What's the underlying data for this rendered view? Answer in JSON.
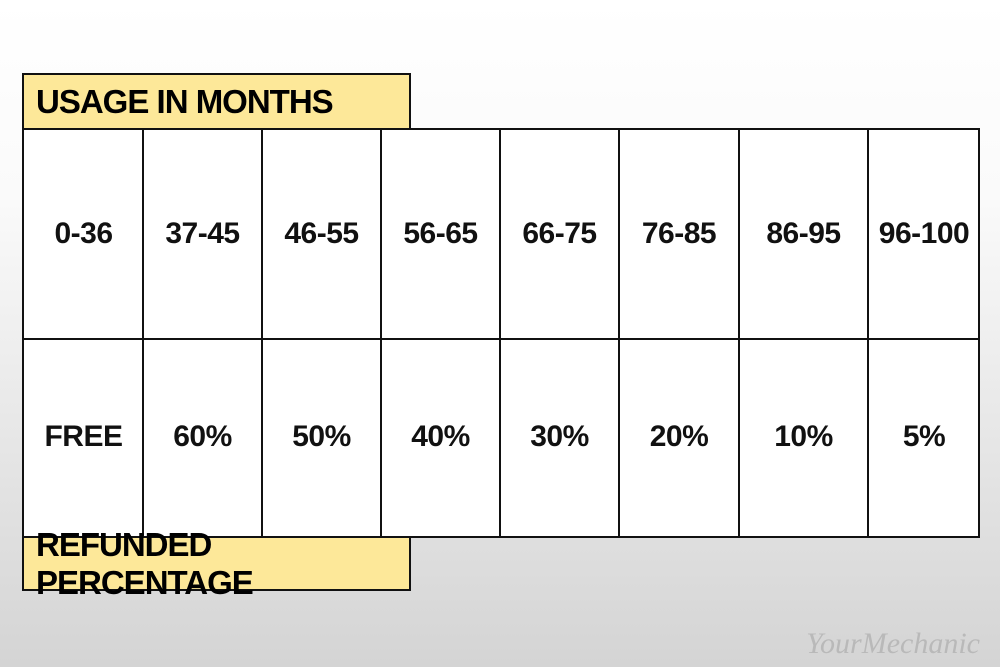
{
  "header": {
    "title": "USAGE IN MONTHS"
  },
  "table": {
    "rows": [
      [
        "0-36",
        "37-45",
        "46-55",
        "56-65",
        "66-75",
        "76-85",
        "86-95",
        "96-100"
      ],
      [
        "FREE",
        "60%",
        "50%",
        "40%",
        "30%",
        "20%",
        "10%",
        "5%"
      ]
    ]
  },
  "footer": {
    "title": "REFUNDED PERCENTAGE"
  },
  "watermark": "YourMechanic"
}
